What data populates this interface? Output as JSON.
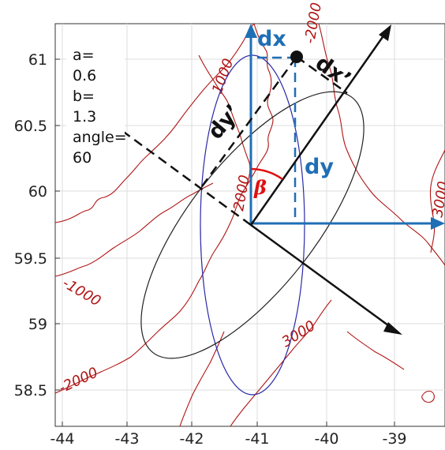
{
  "axes": {
    "xticks": [
      "-44",
      "-43",
      "-42",
      "-41",
      "-40",
      "-39"
    ],
    "yticks": [
      "61",
      "60.5",
      "60",
      "59.5",
      "59",
      "58.5"
    ]
  },
  "params": {
    "lines": [
      "a=",
      "0.6",
      "b=",
      "1.3",
      "angle=",
      "60"
    ]
  },
  "labels": {
    "dx": "dx",
    "dy": "dy",
    "dx_prime": "dx’",
    "dy_prime": "dy’",
    "beta": "β"
  },
  "contours": {
    "c1000_left": "-1000",
    "c1000_top": "1000",
    "c2000_left": "-2000",
    "c2000_top": "-2000",
    "c2000_center": "2000",
    "c3000_bottom": "3000",
    "c3000_right": "3000"
  },
  "colors": {
    "contour": "#b01515",
    "axis_blue": "#1f6fb5",
    "ellipse_blue": "#2a2aa8",
    "beta": "#e01010"
  }
}
